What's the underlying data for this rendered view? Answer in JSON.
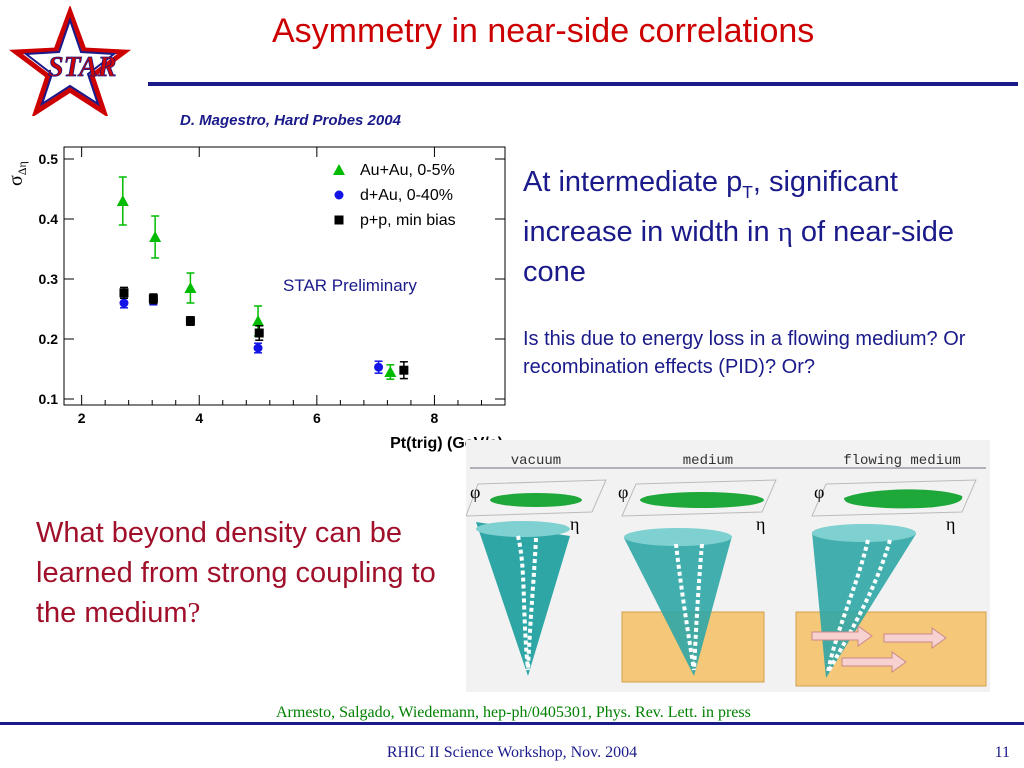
{
  "slide": {
    "title": "Asymmetry in near-side correlations",
    "logo_text": "STAR",
    "citation": "D. Magestro, Hard Probes 2004",
    "para1_part1": "At intermediate p",
    "para1_sub": "T",
    "para1_part2": ", significant increase in width in ",
    "para1_symbol": "η",
    "para1_part3": " of near-side cone",
    "para2": "Is this due to energy loss in a flowing medium?  Or recombination effects (PID)? Or?",
    "question_part1": "What beyond density can be learned from strong coupling to the medium",
    "question_mark": "?",
    "reference": "Armesto, Salgado, Wiedemann,  hep-ph/0405301, Phys. Rev. Lett. in press",
    "footer": "RHIC II Science Workshop, Nov. 2004",
    "page_number": "11"
  },
  "figure": {
    "panels": [
      {
        "label": "vacuum",
        "phi": "φ",
        "eta": "η"
      },
      {
        "label": "medium",
        "phi": "φ",
        "eta": "η"
      },
      {
        "label": "flowing medium",
        "phi": "φ",
        "eta": "η"
      }
    ],
    "colors": {
      "cone": "#2fa6a6",
      "blob": "#1fa83a",
      "medium": "#f4c878",
      "arrow": "#e8a0a0"
    }
  },
  "chart_data": {
    "type": "scatter",
    "title": "",
    "xlabel": "Pt(trig) (GeV/c)",
    "ylabel": "σ",
    "ylabel_sub": "Δη",
    "xlim": [
      1.7,
      9.2
    ],
    "ylim": [
      0.09,
      0.52
    ],
    "xticks": [
      2,
      4,
      6,
      8
    ],
    "xtick_labels": [
      "2",
      "4",
      "6",
      "8"
    ],
    "yticks": [
      0.1,
      0.2,
      0.3,
      0.4,
      0.5
    ],
    "ytick_labels": [
      "0.1",
      "0.2",
      "0.3",
      "0.4",
      "0.5"
    ],
    "annotation": "STAR Preliminary",
    "legend_position": "top-right",
    "series": [
      {
        "name": "Au+Au, 0-5%",
        "marker": "triangle",
        "color": "#00bb00",
        "points": [
          {
            "x": 2.7,
            "y": 0.43,
            "err": 0.04
          },
          {
            "x": 3.25,
            "y": 0.37,
            "err": 0.035
          },
          {
            "x": 3.85,
            "y": 0.285,
            "err": 0.025
          },
          {
            "x": 5.0,
            "y": 0.23,
            "err": 0.025
          },
          {
            "x": 7.25,
            "y": 0.145,
            "err": 0.012
          }
        ]
      },
      {
        "name": "d+Au, 0-40%",
        "marker": "circle",
        "color": "#1414e6",
        "points": [
          {
            "x": 2.72,
            "y": 0.26,
            "err": 0.008
          },
          {
            "x": 3.22,
            "y": 0.265,
            "err": 0.008
          },
          {
            "x": 3.85,
            "y": 0.23,
            "err": 0.007
          },
          {
            "x": 5.0,
            "y": 0.185,
            "err": 0.008
          },
          {
            "x": 7.05,
            "y": 0.153,
            "err": 0.01
          }
        ]
      },
      {
        "name": "p+p, min bias",
        "marker": "square",
        "color": "#000000",
        "points": [
          {
            "x": 2.72,
            "y": 0.277,
            "err": 0.009
          },
          {
            "x": 3.22,
            "y": 0.267,
            "err": 0.008
          },
          {
            "x": 3.85,
            "y": 0.23,
            "err": 0.007
          },
          {
            "x": 5.02,
            "y": 0.21,
            "err": 0.012
          },
          {
            "x": 7.48,
            "y": 0.148,
            "err": 0.014
          }
        ]
      }
    ]
  }
}
